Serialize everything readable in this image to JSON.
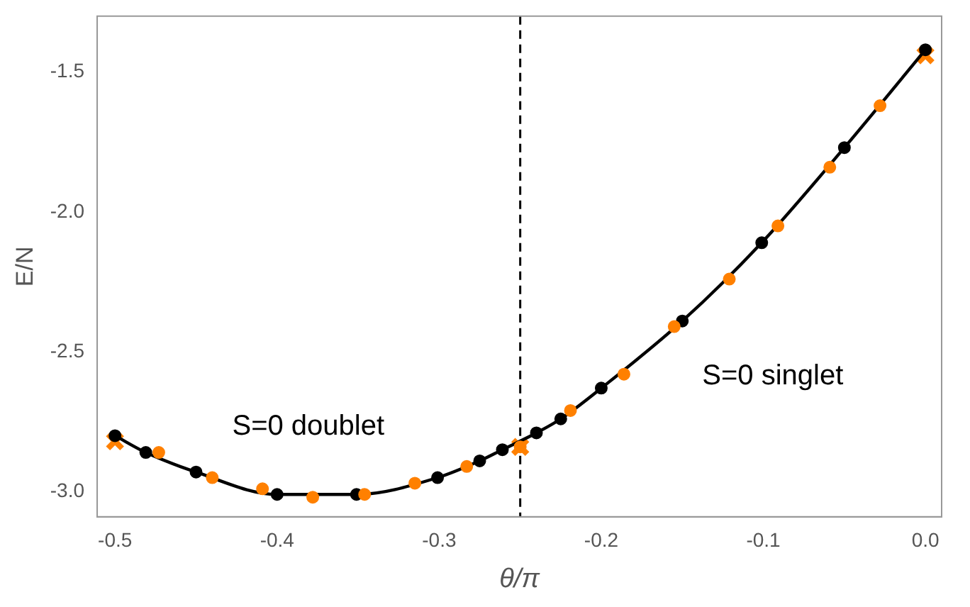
{
  "chart_data": {
    "type": "line",
    "xlabel": "θ/π",
    "ylabel": "E/N",
    "xlim": [
      -0.511,
      0.01
    ],
    "ylim": [
      -3.09,
      -1.3
    ],
    "xticks": [
      -0.5,
      -0.4,
      -0.3,
      -0.2,
      -0.1,
      {
        "value": 0,
        "label": "0.0"
      }
    ],
    "yticks": [
      -1.5,
      {
        "value": -2,
        "label": "-2.0"
      },
      -2.5,
      {
        "value": -3,
        "label": "-3.0"
      }
    ],
    "grid": false,
    "legend": false,
    "series": [
      {
        "color": "#000000",
        "marker": "circle",
        "line_style": "solid",
        "x": [
          -0.5,
          -0.481,
          -0.45,
          -0.4,
          -0.351,
          -0.301,
          -0.275,
          -0.261,
          -0.24,
          -0.225,
          -0.2,
          -0.15,
          -0.101,
          -0.05,
          0
        ],
        "values": [
          -2.8,
          -2.86,
          -2.93,
          -3.01,
          -3.01,
          -2.95,
          -2.89,
          -2.85,
          -2.79,
          -2.74,
          -2.63,
          -2.39,
          -2.11,
          -1.77,
          -1.42
        ]
      },
      {
        "type": "scatter",
        "color": "#ff8000",
        "marker": "circle",
        "x": [
          -0.473,
          -0.44,
          -0.409,
          -0.378,
          -0.346,
          -0.315,
          -0.283,
          -0.25,
          -0.219,
          -0.186,
          -0.155,
          -0.121,
          -0.091,
          -0.059,
          -0.028
        ],
        "values": [
          -2.86,
          -2.95,
          -2.99,
          -3.02,
          -3.01,
          -2.97,
          -2.91,
          -2.84,
          -2.71,
          -2.58,
          -2.41,
          -2.24,
          -2.05,
          -1.84,
          -1.62
        ]
      },
      {
        "type": "scatter",
        "color": "#ff8000",
        "marker": "cross",
        "x": [
          -0.5,
          -0.25,
          0
        ],
        "values": [
          -2.82,
          -2.84,
          -1.44
        ]
      }
    ],
    "ref_lines": [
      {
        "axis": "x",
        "value": -0.25,
        "color": "#000000",
        "line_style": "dashed"
      }
    ],
    "annotations": [
      "S=0 doublet",
      "S=0 singlet"
    ]
  }
}
